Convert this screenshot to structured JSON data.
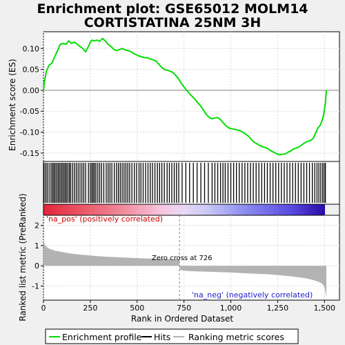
{
  "title_line1": "Enrichment plot: GSE65012 MOLM14",
  "title_line2": "CORTISTATINA 25NM 3H",
  "colors": {
    "enrichment": "#00dd00",
    "hits": "#000000",
    "ranking": "#b3b3b3",
    "zero_line": "#808080",
    "grid": "#d8d8d8",
    "pos_label": "#cc0000",
    "neg_label": "#1a1acc"
  },
  "chart_data": [
    {
      "type": "line",
      "name": "enrichment-score-panel",
      "ylabel": "Enrichment score (ES)",
      "ylim": [
        -0.17,
        0.14
      ],
      "yticks": [
        -0.15,
        -0.1,
        -0.05,
        0.0,
        0.05,
        0.1
      ],
      "ytick_labels": [
        "-0.15",
        "-0.10",
        "-0.05",
        "0.00",
        "0.05",
        "0.10"
      ],
      "xlim": [
        0,
        1580
      ],
      "grid": true,
      "series": [
        {
          "name": "Enrichment profile",
          "x": [
            0,
            5,
            15,
            30,
            45,
            60,
            75,
            90,
            105,
            120,
            135,
            150,
            165,
            180,
            195,
            210,
            225,
            240,
            250,
            260,
            270,
            285,
            300,
            315,
            330,
            345,
            360,
            375,
            390,
            405,
            420,
            435,
            450,
            465,
            480,
            495,
            510,
            525,
            540,
            555,
            570,
            585,
            600,
            615,
            630,
            645,
            660,
            675,
            690,
            705,
            720,
            735,
            750,
            765,
            780,
            795,
            810,
            825,
            840,
            855,
            870,
            885,
            900,
            915,
            930,
            945,
            960,
            975,
            990,
            1005,
            1020,
            1035,
            1050,
            1065,
            1080,
            1095,
            1110,
            1125,
            1140,
            1155,
            1170,
            1185,
            1200,
            1215,
            1230,
            1245,
            1260,
            1275,
            1290,
            1305,
            1320,
            1335,
            1350,
            1365,
            1380,
            1395,
            1410,
            1425,
            1440,
            1455,
            1465,
            1475,
            1485,
            1495,
            1500,
            1505,
            1510
          ],
          "y": [
            0.0,
            0.02,
            0.045,
            0.06,
            0.065,
            0.08,
            0.095,
            0.11,
            0.112,
            0.11,
            0.118,
            0.112,
            0.115,
            0.11,
            0.105,
            0.1,
            0.092,
            0.105,
            0.115,
            0.12,
            0.118,
            0.12,
            0.117,
            0.124,
            0.118,
            0.11,
            0.105,
            0.098,
            0.095,
            0.097,
            0.1,
            0.097,
            0.095,
            0.093,
            0.088,
            0.085,
            0.082,
            0.08,
            0.078,
            0.078,
            0.075,
            0.073,
            0.07,
            0.063,
            0.055,
            0.05,
            0.048,
            0.046,
            0.043,
            0.036,
            0.028,
            0.017,
            0.008,
            0.0,
            -0.008,
            -0.015,
            -0.022,
            -0.03,
            -0.038,
            -0.048,
            -0.058,
            -0.065,
            -0.068,
            -0.066,
            -0.065,
            -0.07,
            -0.078,
            -0.085,
            -0.09,
            -0.092,
            -0.093,
            -0.095,
            -0.097,
            -0.1,
            -0.105,
            -0.11,
            -0.118,
            -0.124,
            -0.128,
            -0.132,
            -0.135,
            -0.137,
            -0.14,
            -0.145,
            -0.148,
            -0.152,
            -0.154,
            -0.153,
            -0.152,
            -0.148,
            -0.145,
            -0.14,
            -0.138,
            -0.135,
            -0.13,
            -0.125,
            -0.122,
            -0.12,
            -0.115,
            -0.1,
            -0.09,
            -0.085,
            -0.075,
            -0.06,
            -0.045,
            -0.03,
            0.0
          ]
        }
      ]
    },
    {
      "type": "scatter",
      "name": "hits-panel",
      "series": [
        {
          "name": "Hits",
          "x": [
            3,
            12,
            20,
            30,
            40,
            48,
            55,
            62,
            70,
            78,
            85,
            93,
            100,
            108,
            115,
            122,
            130,
            138,
            145,
            155,
            165,
            175,
            185,
            195,
            205,
            215,
            225,
            240,
            250,
            258,
            265,
            272,
            280,
            290,
            300,
            310,
            322,
            335,
            345,
            355,
            365,
            378,
            390,
            400,
            410,
            420,
            430,
            440,
            450,
            460,
            472,
            485,
            497,
            510,
            520,
            532,
            545,
            558,
            570,
            582,
            595,
            608,
            620,
            632,
            645,
            660,
            672,
            685,
            698,
            710,
            722,
            740,
            760,
            780,
            800,
            820,
            840,
            860,
            880,
            900,
            915,
            930,
            945,
            958,
            970,
            985,
            1000,
            1015,
            1030,
            1045,
            1060,
            1075,
            1090,
            1105,
            1120,
            1135,
            1150,
            1165,
            1180,
            1195,
            1210,
            1225,
            1240,
            1255,
            1270,
            1285,
            1300,
            1315,
            1330,
            1345,
            1360,
            1375,
            1390,
            1405,
            1420,
            1435,
            1448,
            1460,
            1470,
            1480,
            1490,
            1498,
            1505
          ]
        }
      ]
    },
    {
      "type": "area",
      "name": "ranking-panel",
      "ylabel": "Ranked list metric (PreRanked)",
      "xlabel": "Rank in Ordered Dataset",
      "ylim": [
        -1.7,
        2.5
      ],
      "yticks": [
        -1,
        0,
        1,
        2
      ],
      "ytick_labels": [
        "-1",
        "0",
        "1",
        "2"
      ],
      "xlim": [
        0,
        1580
      ],
      "xticks": [
        0,
        250,
        500,
        750,
        1000,
        1250,
        1500
      ],
      "xtick_labels": [
        "0",
        "250",
        "500",
        "750",
        "1,000",
        "1,250",
        "1,500"
      ],
      "zero_cross": 726,
      "series": [
        {
          "name": "Ranking metric scores",
          "x": [
            0,
            5,
            15,
            30,
            60,
            100,
            150,
            200,
            300,
            400,
            500,
            600,
            700,
            725,
            727,
            760,
            800,
            900,
            1000,
            1100,
            1200,
            1300,
            1350,
            1400,
            1440,
            1470,
            1490,
            1500,
            1505,
            1510
          ],
          "y": [
            1.35,
            1.1,
            0.95,
            0.85,
            0.75,
            0.68,
            0.6,
            0.55,
            0.47,
            0.42,
            0.38,
            0.35,
            0.32,
            0.31,
            -0.2,
            -0.25,
            -0.27,
            -0.3,
            -0.33,
            -0.38,
            -0.42,
            -0.5,
            -0.55,
            -0.62,
            -0.7,
            -0.8,
            -0.9,
            -1.05,
            -1.3,
            -1.55
          ]
        }
      ]
    }
  ],
  "annotations": {
    "pos_label": "'na_pos' (positively correlated)",
    "neg_label": "'na_neg' (negatively correlated)",
    "zero_cross": "Zero cross at 726"
  },
  "legend": {
    "items": [
      {
        "label": "Enrichment profile",
        "color": "#00dd00"
      },
      {
        "label": "Hits",
        "color": "#000000"
      },
      {
        "label": "Ranking metric scores",
        "color": "#b3b3b3"
      }
    ]
  }
}
